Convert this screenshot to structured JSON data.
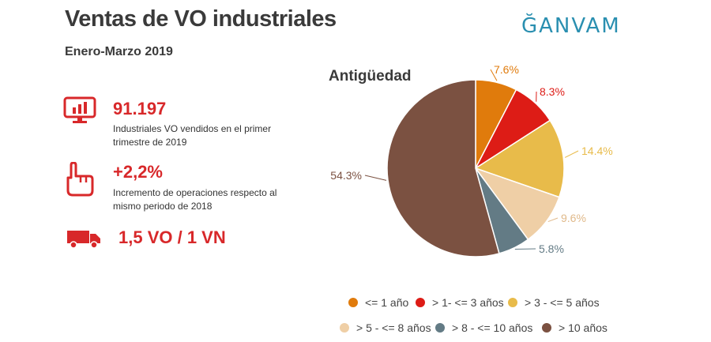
{
  "header": {
    "title": "Ventas de VO industriales",
    "subtitle": "Enero-Marzo 2019",
    "logo_text": "ĞANVAM"
  },
  "stats": [
    {
      "icon": "monitor-chart-icon",
      "value": "91.197",
      "desc_line1": "Industriales VO vendidos en el primer",
      "desc_line2": "trimestre de 2019"
    },
    {
      "icon": "pointing-hand-icon",
      "value": "+2,2%",
      "desc_line1": "Incremento de operaciones respecto al",
      "desc_line2": "mismo periodo de 2018"
    },
    {
      "icon": "truck-icon",
      "value": "1,5 VO / 1 VN"
    }
  ],
  "colors": {
    "accent_red": "#d8282a",
    "logo_blue": "#2a8fb0"
  },
  "chart_data": {
    "type": "pie",
    "title": "Antigüedad",
    "categories": [
      "<= 1 año",
      "> 1- <= 3 años",
      "> 3 - <= 5 años",
      "> 5 - <= 8 años",
      "> 8 - <= 10 años",
      "> 10 años"
    ],
    "values": [
      7.6,
      8.3,
      14.4,
      9.6,
      5.8,
      54.3
    ],
    "labels": [
      "7.6%",
      "8.3%",
      "14.4%",
      "9.6%",
      "5.8%",
      "54.3%"
    ],
    "colors": [
      "#e07b0c",
      "#dd1c16",
      "#e8bb4a",
      "#efcfa6",
      "#637b85",
      "#7b5141"
    ],
    "label_colors": [
      "#e07b0c",
      "#dd1c16",
      "#e8bb4a",
      "#e0b98a",
      "#637b85",
      "#7b5141"
    ],
    "legend_position": "bottom"
  }
}
